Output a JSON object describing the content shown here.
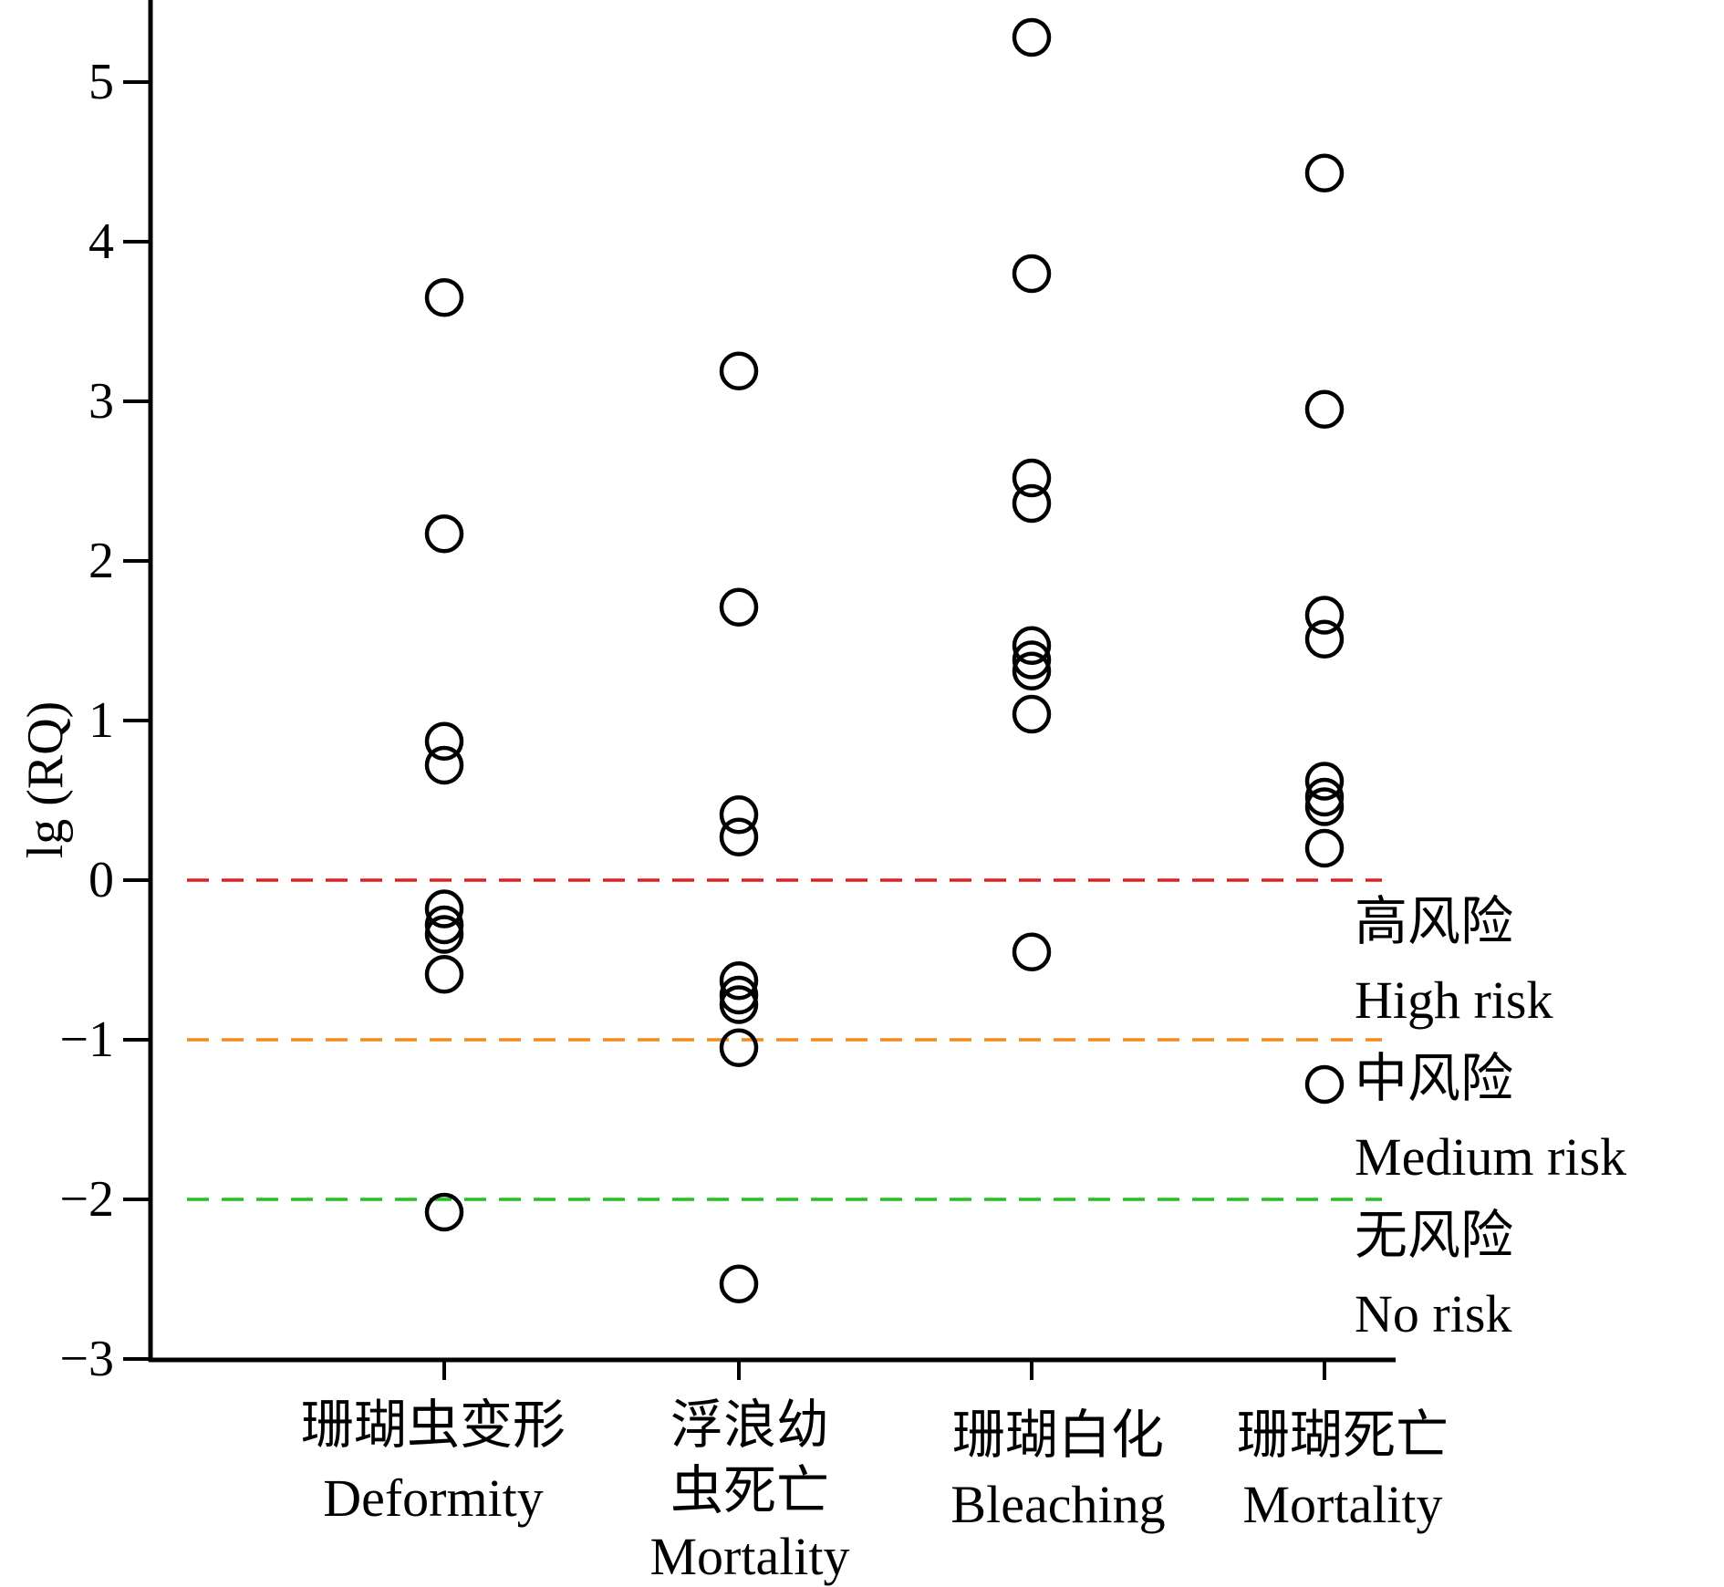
{
  "chart_data": {
    "type": "scatter",
    "ylabel": "lg (RQ)",
    "ylim": [
      -3,
      5.5
    ],
    "yticks": [
      5,
      4,
      3,
      2,
      1,
      0,
      -1,
      -2,
      -3
    ],
    "ytick_labels": [
      "5",
      "4",
      "3",
      "2",
      "1",
      "0",
      "−1",
      "−2",
      "−3"
    ],
    "categories": [
      {
        "label_lines": [
          "珊瑚虫变形",
          "Deformity"
        ]
      },
      {
        "label_lines": [
          "浮浪幼",
          "虫死亡",
          "Mortality"
        ]
      },
      {
        "label_lines": [
          "珊瑚白化",
          "Bleaching"
        ]
      },
      {
        "label_lines": [
          "珊瑚死亡",
          "Mortality"
        ]
      }
    ],
    "points": [
      [
        3.65,
        2.17,
        0.87,
        0.72,
        -0.18,
        -0.28,
        -0.34,
        -0.59,
        -2.08
      ],
      [
        3.19,
        1.71,
        0.41,
        0.27,
        -0.63,
        -0.72,
        -0.78,
        -1.05,
        -2.53
      ],
      [
        5.28,
        3.8,
        2.52,
        2.36,
        1.47,
        1.38,
        1.31,
        1.04,
        -0.45
      ],
      [
        4.43,
        2.95,
        1.66,
        1.51,
        0.62,
        0.52,
        0.46,
        0.2,
        -1.28
      ]
    ],
    "thresholds": [
      {
        "value": 0,
        "color": "#e0201f"
      },
      {
        "value": -1,
        "color": "#f08a1c"
      },
      {
        "value": -2,
        "color": "#22c01e"
      }
    ],
    "zone_labels": [
      {
        "lines": [
          "高风险",
          "High risk"
        ]
      },
      {
        "lines": [
          "中风险",
          "Medium risk"
        ]
      },
      {
        "lines": [
          "无风险",
          "No risk"
        ]
      }
    ]
  }
}
